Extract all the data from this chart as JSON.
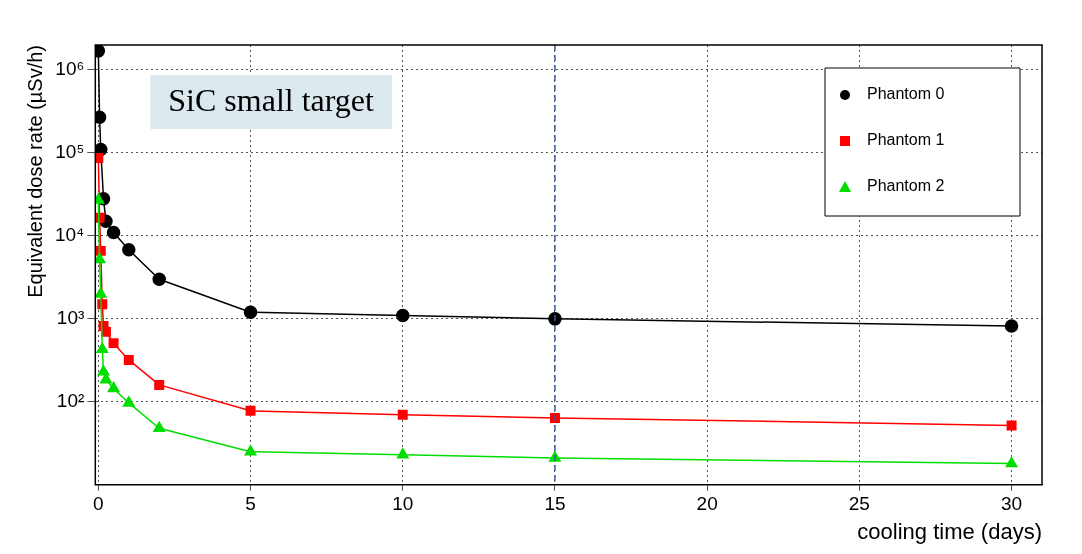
{
  "chart_data": {
    "type": "line",
    "xlabel": "cooling time (days)",
    "ylabel": "Equivalent dose rate (µSv/h)",
    "log": "y",
    "xlim": [
      -0.1,
      31
    ],
    "xticks": [
      0,
      5,
      10,
      15,
      20,
      25,
      30
    ],
    "ylim": [
      10,
      2000000
    ],
    "yticks": [
      {
        "value": 100,
        "label": "10²"
      },
      {
        "value": 1000,
        "label": "10³"
      },
      {
        "value": 10000,
        "label": "10⁴"
      },
      {
        "value": 100000,
        "label": "10⁵"
      },
      {
        "value": 1000000,
        "label": "10⁶"
      }
    ],
    "grid": true,
    "legend": "top right",
    "annotations": [
      "SiC small target"
    ],
    "ref_lines": [
      {
        "axis": "x",
        "value": 15,
        "color": "#3a5fa0",
        "line_style": "dashed"
      }
    ],
    "series": [
      {
        "name": "Phantom 0",
        "color": "#000000",
        "marker": "circle",
        "x": [
          0,
          0.04,
          0.08,
          0.17,
          0.25,
          0.5,
          1,
          2,
          5,
          10,
          15,
          30
        ],
        "values": [
          1700000,
          270000,
          110000,
          28000,
          15000,
          11000,
          6800,
          3000,
          1200,
          1100,
          1000,
          820
        ]
      },
      {
        "name": "Phantom 1",
        "color": "#ff0000",
        "marker": "square",
        "x": [
          0,
          0.04,
          0.08,
          0.13,
          0.17,
          0.25,
          0.5,
          1,
          2,
          5,
          10,
          15,
          30
        ],
        "values": [
          87000,
          16500,
          6600,
          1500,
          820,
          700,
          510,
          320,
          160,
          78,
          70,
          64,
          52
        ]
      },
      {
        "name": "Phantom 2",
        "color": "#00dd00",
        "marker": "triangle",
        "x": [
          0,
          0.04,
          0.08,
          0.13,
          0.17,
          0.25,
          0.5,
          1,
          2,
          5,
          10,
          15,
          30
        ],
        "values": [
          27000,
          5200,
          2000,
          430,
          230,
          185,
          145,
          97,
          48,
          25,
          23,
          21,
          18
        ]
      }
    ]
  }
}
